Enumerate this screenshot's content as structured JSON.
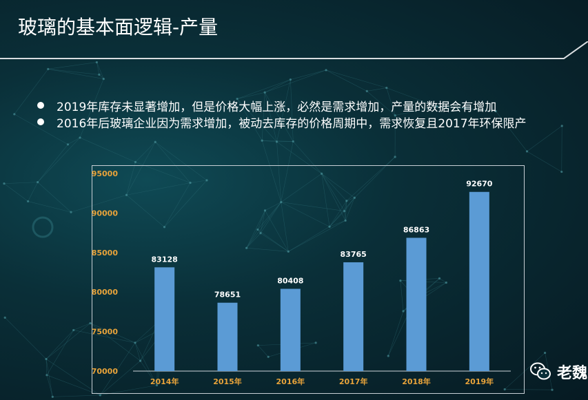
{
  "slide": {
    "title": "玻璃的基本面逻辑-产量",
    "bullets": [
      "2019年库存未显著增加，但是价格大幅上涨，必然是需求增加，产量的数据会有增加",
      "2016年后玻璃企业因为需求增加，被动去库存的价格周期中，需求恢复且2017年环保限产"
    ]
  },
  "watermark": {
    "text": "老魏",
    "icon": "wechat-icon"
  },
  "colors": {
    "bar": "#5b9bd5",
    "tick_label": "#e8a33a",
    "data_label": "#ffffff",
    "axis": "#cfd6dc"
  },
  "chart_data": {
    "type": "bar",
    "title": "",
    "xlabel": "",
    "ylabel": "",
    "categories": [
      "2014年",
      "2015年",
      "2016年",
      "2017年",
      "2018年",
      "2019年"
    ],
    "values": [
      83128,
      78651,
      80408,
      83765,
      86863,
      92670
    ],
    "data_labels": [
      "83128",
      "78651",
      "80408",
      "83765",
      "86863",
      "92670"
    ],
    "ylim": [
      70000,
      95000
    ],
    "yticks": [
      70000,
      75000,
      80000,
      85000,
      90000,
      95000
    ],
    "ytick_labels": [
      "70000",
      "75000",
      "80000",
      "85000",
      "90000",
      "95000"
    ],
    "grid": false,
    "legend": "none"
  }
}
